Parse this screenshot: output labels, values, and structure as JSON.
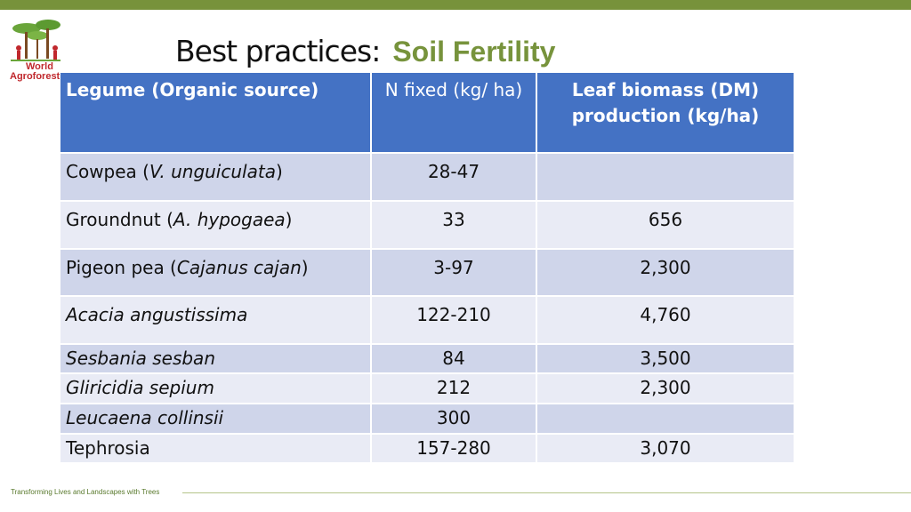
{
  "logo": {
    "line1": "World",
    "line2": "Agroforest"
  },
  "header": {
    "title": "Best practices:",
    "subtitle": "Soil Fertility"
  },
  "table": {
    "columns": [
      "Legume (Organic source)",
      "N fixed (kg/ ha)",
      "Leaf biomass (DM) production (kg/ha)"
    ],
    "rows": [
      {
        "name": [
          {
            "text": "Cowpea ("
          },
          {
            "text": "V. unguiculata",
            "italic": true
          },
          {
            "text": ")"
          }
        ],
        "n_fixed": "28-47",
        "biomass": null
      },
      {
        "name": [
          {
            "text": "Groundnut ("
          },
          {
            "text": "A. hypogaea",
            "italic": true
          },
          {
            "text": ")"
          }
        ],
        "n_fixed": "33",
        "biomass": "656"
      },
      {
        "name": [
          {
            "text": "Pigeon pea ("
          },
          {
            "text": "Cajanus cajan",
            "italic": true
          },
          {
            "text": ")"
          }
        ],
        "n_fixed": "3-97",
        "biomass": "2,300"
      },
      {
        "name": [
          {
            "text": "Acacia angustissima",
            "italic": true
          }
        ],
        "n_fixed": "122-210",
        "biomass": "4,760"
      },
      {
        "name": [
          {
            "text": "Sesbania sesban",
            "italic": true
          }
        ],
        "n_fixed": "84",
        "biomass": "3,500"
      },
      {
        "name": [
          {
            "text": "Gliricidia sepium",
            "italic": true
          }
        ],
        "n_fixed": "212",
        "biomass": "2,300"
      },
      {
        "name": [
          {
            "text": "Leucaena collinsii",
            "italic": true
          }
        ],
        "n_fixed": "300",
        "biomass": null
      },
      {
        "name": [
          {
            "text": "Tephrosia"
          }
        ],
        "n_fixed": "157-280",
        "biomass": "3,070"
      }
    ]
  },
  "footer": {
    "tagline": "Transforming Lives and Landscapes with Trees"
  }
}
